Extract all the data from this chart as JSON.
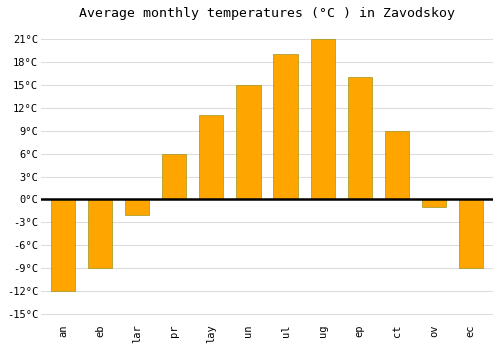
{
  "title": "Average monthly temperatures (°C ) in Zavodskoy",
  "month_labels": [
    "an",
    "eb",
    "lar",
    "pr",
    "lay",
    "un",
    "ul",
    "ug",
    "ep",
    "ct",
    "ov",
    "ec"
  ],
  "values": [
    -12,
    -9,
    -2,
    6,
    11,
    15,
    19,
    21,
    16,
    9,
    -1,
    -9
  ],
  "bar_color": "#FFA500",
  "bar_edge_color": "#888800",
  "yticks": [
    -15,
    -12,
    -9,
    -6,
    -3,
    0,
    3,
    6,
    9,
    12,
    15,
    18,
    21
  ],
  "ylim": [
    -16,
    23
  ],
  "background_color": "#ffffff",
  "grid_color": "#dddddd",
  "title_fontsize": 9.5,
  "zero_line_color": "#000000",
  "tick_fontsize": 7.5
}
